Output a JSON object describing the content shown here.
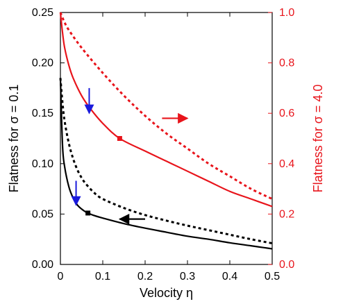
{
  "chart_data": {
    "type": "line",
    "xlabel": "Velocity η",
    "ylabel_left": "Flatness for σ = 0.1",
    "ylabel_right": "Flatness for σ = 4.0",
    "xlim": [
      0,
      0.5
    ],
    "ylim_left": [
      0,
      0.25
    ],
    "ylim_right": [
      0,
      1.0
    ],
    "x_ticks": [
      "0",
      "0.1",
      "0.2",
      "0.3",
      "0.4",
      "0.5"
    ],
    "y_left_ticks": [
      "0.00",
      "0.05",
      "0.10",
      "0.15",
      "0.20",
      "0.25"
    ],
    "y_right_ticks": [
      "0.0",
      "0.2",
      "0.4",
      "0.6",
      "0.8",
      "1.0"
    ],
    "grid": false,
    "colors": {
      "sigma_0_1": "#000000",
      "sigma_4_0": "#e8141b",
      "arrow_marker": "#1a1adc"
    },
    "series": [
      {
        "axis": "left",
        "color": "#000000",
        "style": "solid",
        "x": [
          0.0,
          0.005,
          0.01,
          0.02,
          0.03,
          0.04,
          0.05,
          0.06,
          0.065,
          0.08,
          0.1,
          0.15,
          0.2,
          0.25,
          0.3,
          0.35,
          0.4,
          0.45,
          0.5
        ],
        "y": [
          0.185,
          0.118,
          0.097,
          0.077,
          0.066,
          0.059,
          0.055,
          0.052,
          0.051,
          0.0485,
          0.046,
          0.0405,
          0.036,
          0.032,
          0.028,
          0.025,
          0.0215,
          0.0185,
          0.0155
        ]
      },
      {
        "axis": "left",
        "color": "#000000",
        "style": "dotted",
        "x": [
          0.0,
          0.005,
          0.01,
          0.02,
          0.03,
          0.04,
          0.05,
          0.06,
          0.08,
          0.1,
          0.15,
          0.2,
          0.25,
          0.3,
          0.35,
          0.4,
          0.45,
          0.5
        ],
        "y": [
          0.185,
          0.16,
          0.142,
          0.12,
          0.105,
          0.094,
          0.086,
          0.08,
          0.071,
          0.065,
          0.056,
          0.049,
          0.0435,
          0.0385,
          0.034,
          0.0295,
          0.025,
          0.021
        ]
      },
      {
        "axis": "right",
        "color": "#e8141b",
        "style": "solid",
        "x": [
          0.0,
          0.005,
          0.01,
          0.02,
          0.03,
          0.05,
          0.07,
          0.1,
          0.14,
          0.2,
          0.25,
          0.3,
          0.35,
          0.4,
          0.45,
          0.5
        ],
        "y": [
          1.0,
          0.92,
          0.86,
          0.79,
          0.74,
          0.67,
          0.62,
          0.56,
          0.5,
          0.45,
          0.41,
          0.37,
          0.33,
          0.29,
          0.26,
          0.23
        ]
      },
      {
        "axis": "right",
        "color": "#e8141b",
        "style": "dotted",
        "x": [
          0.0,
          0.01,
          0.02,
          0.05,
          0.1,
          0.15,
          0.2,
          0.25,
          0.3,
          0.35,
          0.4,
          0.45,
          0.5
        ],
        "y": [
          1.0,
          0.96,
          0.93,
          0.86,
          0.76,
          0.67,
          0.59,
          0.52,
          0.46,
          0.4,
          0.35,
          0.3,
          0.26
        ]
      }
    ],
    "markers": [
      {
        "axis": "left",
        "x": 0.065,
        "y": 0.051,
        "color": "#000000"
      },
      {
        "axis": "right",
        "x": 0.14,
        "y": 0.5,
        "color": "#e8141b"
      }
    ],
    "annotations": [
      {
        "kind": "down-arrow",
        "axis": "left",
        "x": 0.037,
        "y_from": 0.083,
        "y_to": 0.059,
        "color": "#1a1adc"
      },
      {
        "kind": "down-arrow",
        "axis": "right",
        "x": 0.068,
        "y_from": 0.7,
        "y_to": 0.6,
        "color": "#1a1adc"
      },
      {
        "kind": "direction-arrow",
        "axis": "right",
        "x_from": 0.24,
        "x_to": 0.3,
        "y": 0.58,
        "color": "#e8141b"
      },
      {
        "kind": "direction-arrow",
        "axis": "right",
        "x_from": 0.2,
        "x_to": 0.14,
        "y": 0.18,
        "color": "#000000"
      }
    ]
  }
}
